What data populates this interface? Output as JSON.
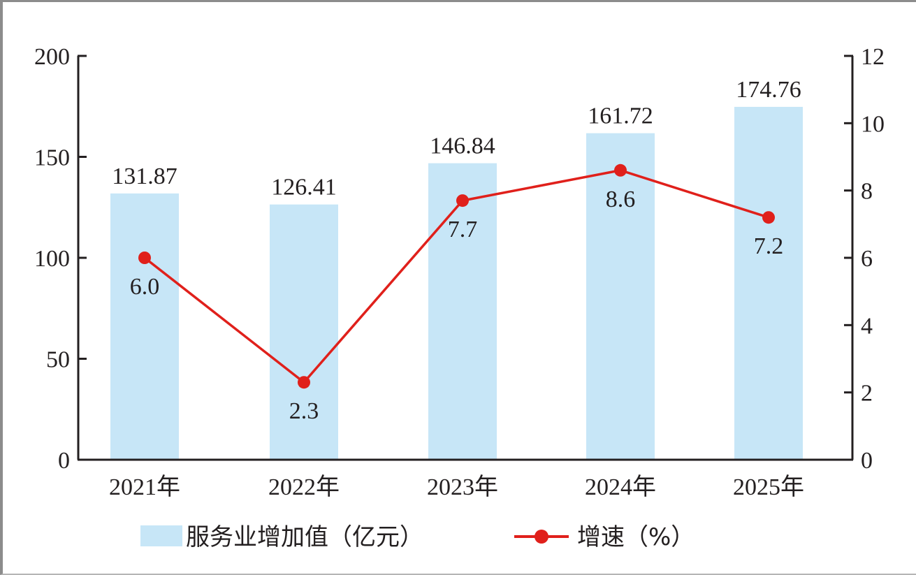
{
  "chart_data": {
    "type": "bar",
    "categories": [
      "2021年",
      "2022年",
      "2023年",
      "2024年",
      "2025年"
    ],
    "series": [
      {
        "name": "服务业增加值（亿元）",
        "type": "bar",
        "axis": "left",
        "values": [
          131.87,
          126.41,
          146.84,
          161.72,
          174.76
        ],
        "labels": [
          "131.87",
          "126.41",
          "146.84",
          "161.72",
          "174.76"
        ],
        "color": "#c7e6f7"
      },
      {
        "name": "增速（%）",
        "type": "line",
        "axis": "right",
        "values": [
          6.0,
          2.3,
          7.7,
          8.6,
          7.2
        ],
        "labels": [
          "6.0",
          "2.3",
          "7.7",
          "8.6",
          "7.2"
        ],
        "color": "#e0201b"
      }
    ],
    "y_left": {
      "ylim": [
        0,
        200
      ],
      "ticks": [
        "0",
        "50",
        "100",
        "150",
        "200"
      ]
    },
    "y_right": {
      "ylim": [
        0,
        12
      ],
      "ticks": [
        "0",
        "2",
        "4",
        "6",
        "8",
        "10",
        "12"
      ]
    },
    "grid": false,
    "legend_position": "bottom"
  }
}
